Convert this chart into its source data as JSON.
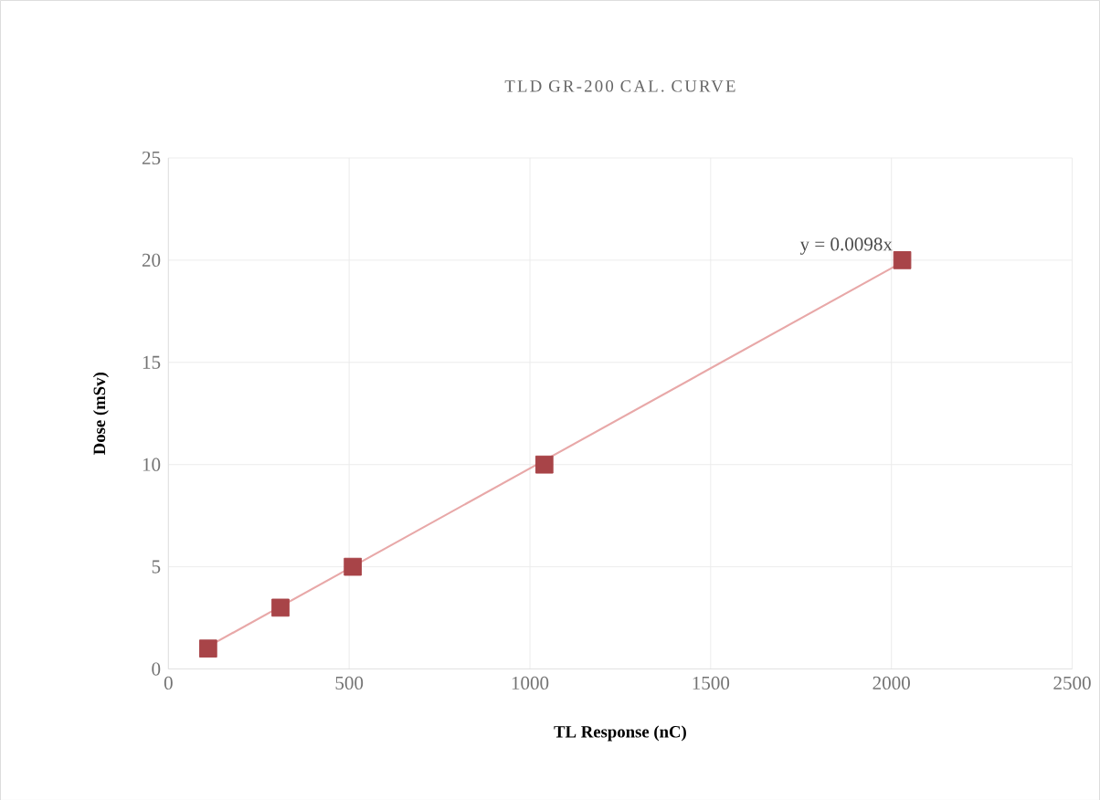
{
  "chart_data": {
    "type": "scatter",
    "title": "TLD GR-200 CAL. CURVE",
    "xlabel": "TL Response (nC)",
    "ylabel": "Dose (mSv)",
    "x": [
      110,
      310,
      510,
      1040,
      2030
    ],
    "series": [
      {
        "color": "#a84448",
        "values": [
          1,
          3,
          5,
          10,
          20
        ],
        "marker": "square"
      },
      {
        "type": "line",
        "color": "#e8a8a8",
        "x": [
          110,
          2030
        ],
        "values": [
          1.1,
          19.9
        ],
        "marker": "none",
        "line_style": "solid"
      }
    ],
    "annotations": [
      "y = 0.0098x"
    ],
    "xlim": [
      0,
      2500
    ],
    "ylim": [
      0,
      25
    ],
    "xticks": [
      0,
      500,
      1000,
      1500,
      2000,
      2500
    ],
    "yticks": [
      0,
      5,
      10,
      15,
      20,
      25
    ],
    "grid": true
  }
}
